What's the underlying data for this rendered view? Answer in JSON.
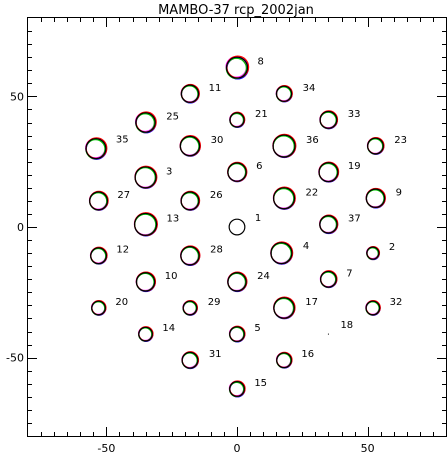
{
  "chart_data": {
    "type": "scatter",
    "title": "MAMBO-37 rcp_2002jan",
    "xlabel": "",
    "ylabel": "",
    "xlim": [
      -80,
      80
    ],
    "ylim": [
      -80,
      80
    ],
    "xticks": [
      -50,
      0,
      50
    ],
    "yticks": [
      -50,
      0,
      50
    ],
    "grid": false,
    "series_colors": [
      "#000000",
      "#ff0000",
      "#00c000",
      "#0000ff",
      "#ff00ff",
      "#ff8000"
    ],
    "stray_points": [
      {
        "x": 35,
        "y": -41
      }
    ],
    "beams": [
      {
        "id": "1",
        "x": 0,
        "y": 0,
        "r": 3.0,
        "label_dx": 10,
        "label_dy": 0,
        "spread": 0.0
      },
      {
        "id": "2",
        "x": 52,
        "y": -10,
        "r": 2.3,
        "label_dx": 10,
        "label_dy": 3,
        "spread": 0.4
      },
      {
        "id": "3",
        "x": -35,
        "y": 19,
        "r": 4.0,
        "label_dx": 10,
        "label_dy": 3,
        "spread": 0.4
      },
      {
        "id": "4",
        "x": 17,
        "y": -10,
        "r": 4.0,
        "label_dx": 11,
        "label_dy": 2,
        "spread": 0.4
      },
      {
        "id": "5",
        "x": 0,
        "y": -41,
        "r": 2.8,
        "label_dx": 10,
        "label_dy": 3,
        "spread": 0.4
      },
      {
        "id": "6",
        "x": 0,
        "y": 21,
        "r": 3.5,
        "label_dx": 10,
        "label_dy": 3,
        "spread": 0.3
      },
      {
        "id": "7",
        "x": 35,
        "y": -20,
        "r": 3.0,
        "label_dx": 10,
        "label_dy": 3,
        "spread": 0.4
      },
      {
        "id": "8",
        "x": 0,
        "y": 61,
        "r": 4.0,
        "label_dx": 10,
        "label_dy": 3,
        "spread": 0.8
      },
      {
        "id": "9",
        "x": 53,
        "y": 11,
        "r": 3.5,
        "label_dx": 11,
        "label_dy": 3,
        "spread": 0.4
      },
      {
        "id": "10",
        "x": -35,
        "y": -21,
        "r": 3.5,
        "label_dx": 10,
        "label_dy": 3,
        "spread": 0.4
      },
      {
        "id": "11",
        "x": -18,
        "y": 51,
        "r": 3.3,
        "label_dx": 10,
        "label_dy": 3,
        "spread": 0.4
      },
      {
        "id": "12",
        "x": -53,
        "y": -11,
        "r": 3.0,
        "label_dx": 10,
        "label_dy": 3,
        "spread": 0.4
      },
      {
        "id": "13",
        "x": -35,
        "y": 1,
        "r": 4.2,
        "label_dx": 10,
        "label_dy": 3,
        "spread": 0.4
      },
      {
        "id": "14",
        "x": -35,
        "y": -41,
        "r": 2.6,
        "label_dx": 10,
        "label_dy": 3,
        "spread": 0.4
      },
      {
        "id": "15",
        "x": 0,
        "y": -62,
        "r": 2.8,
        "label_dx": 10,
        "label_dy": 3,
        "spread": 0.5
      },
      {
        "id": "16",
        "x": 18,
        "y": -51,
        "r": 2.8,
        "label_dx": 10,
        "label_dy": 3,
        "spread": 0.4
      },
      {
        "id": "17",
        "x": 18,
        "y": -31,
        "r": 3.9,
        "label_dx": 11,
        "label_dy": 3,
        "spread": 0.4
      },
      {
        "id": "18",
        "x": 35,
        "y": -41,
        "r": 0.0,
        "label_dx": 12,
        "label_dy": 0,
        "spread": 0.0
      },
      {
        "id": "19",
        "x": 35,
        "y": 21,
        "r": 3.6,
        "label_dx": 10,
        "label_dy": 3,
        "spread": 0.4
      },
      {
        "id": "20",
        "x": -53,
        "y": -31,
        "r": 2.6,
        "label_dx": 10,
        "label_dy": 3,
        "spread": 0.4
      },
      {
        "id": "21",
        "x": 0,
        "y": 41,
        "r": 2.7,
        "label_dx": 11,
        "label_dy": 3,
        "spread": 0.4
      },
      {
        "id": "22",
        "x": 18,
        "y": 11,
        "r": 4.0,
        "label_dx": 11,
        "label_dy": 3,
        "spread": 0.4
      },
      {
        "id": "23",
        "x": 53,
        "y": 31,
        "r": 3.0,
        "label_dx": 11,
        "label_dy": 3,
        "spread": 0.4
      },
      {
        "id": "24",
        "x": 0,
        "y": -21,
        "r": 3.5,
        "label_dx": 11,
        "label_dy": 3,
        "spread": 0.4
      },
      {
        "id": "25",
        "x": -35,
        "y": 40,
        "r": 3.7,
        "label_dx": 11,
        "label_dy": 3,
        "spread": 0.6
      },
      {
        "id": "26",
        "x": -18,
        "y": 10,
        "r": 3.4,
        "label_dx": 11,
        "label_dy": 3,
        "spread": 0.4
      },
      {
        "id": "27",
        "x": -53,
        "y": 10,
        "r": 3.4,
        "label_dx": 10,
        "label_dy": 3,
        "spread": 0.4
      },
      {
        "id": "28",
        "x": -18,
        "y": -11,
        "r": 3.5,
        "label_dx": 11,
        "label_dy": 3,
        "spread": 0.4
      },
      {
        "id": "29",
        "x": -18,
        "y": -31,
        "r": 2.6,
        "label_dx": 11,
        "label_dy": 3,
        "spread": 0.4
      },
      {
        "id": "30",
        "x": -18,
        "y": 31,
        "r": 3.7,
        "label_dx": 11,
        "label_dy": 3,
        "spread": 0.4
      },
      {
        "id": "31",
        "x": -18,
        "y": -51,
        "r": 3.0,
        "label_dx": 11,
        "label_dy": 3,
        "spread": 0.4
      },
      {
        "id": "32",
        "x": 52,
        "y": -31,
        "r": 2.6,
        "label_dx": 10,
        "label_dy": 3,
        "spread": 0.4
      },
      {
        "id": "33",
        "x": 35,
        "y": 41,
        "r": 3.2,
        "label_dx": 11,
        "label_dy": 3,
        "spread": 0.4
      },
      {
        "id": "34",
        "x": 18,
        "y": 51,
        "r": 2.9,
        "label_dx": 11,
        "label_dy": 3,
        "spread": 0.4
      },
      {
        "id": "35",
        "x": -54,
        "y": 30,
        "r": 3.8,
        "label_dx": 10,
        "label_dy": 0,
        "spread": 0.6
      },
      {
        "id": "36",
        "x": 18,
        "y": 31,
        "r": 4.2,
        "label_dx": 11,
        "label_dy": 3,
        "spread": 0.4
      },
      {
        "id": "37",
        "x": 35,
        "y": 1,
        "r": 3.3,
        "label_dx": 11,
        "label_dy": 3,
        "spread": 0.4
      }
    ]
  }
}
